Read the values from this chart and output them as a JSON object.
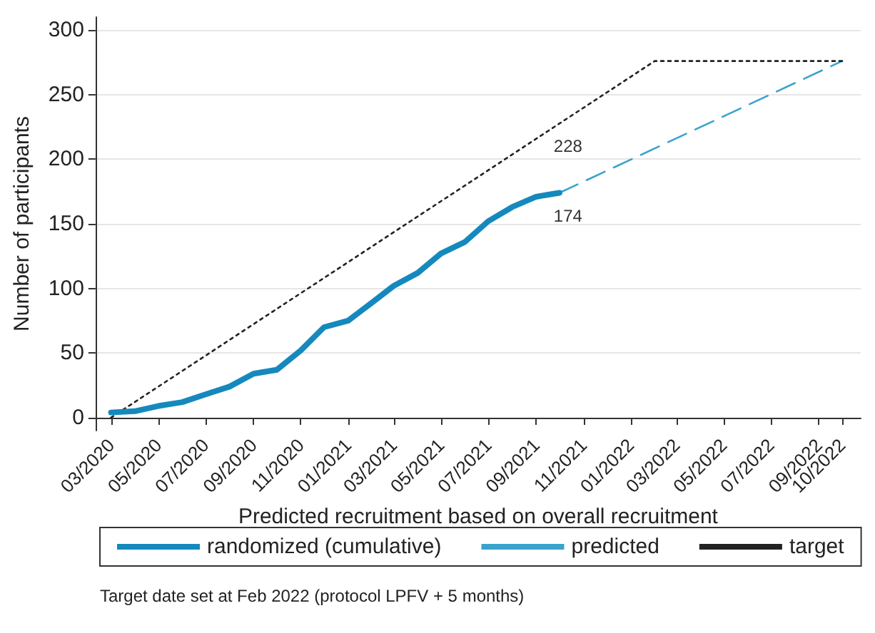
{
  "chart_data": {
    "type": "line",
    "xlabel": "Predicted recruitment based on overall recruitment",
    "ylabel": "Number of participants",
    "annotations": [
      {
        "text": "228",
        "x": "2021-10",
        "y": 228
      },
      {
        "text": "174",
        "x": "2021-10",
        "y": 174
      },
      "Target date set at Feb 2022 (protocol LPFV + 5 months)"
    ],
    "series": [
      {
        "name": "randomized (cumulative)",
        "color": "#1589bd",
        "line_style": "solid",
        "x": [
          "2020-03",
          "2020-04",
          "2020-05",
          "2020-06",
          "2020-07",
          "2020-08",
          "2020-09",
          "2020-10",
          "2020-11",
          "2020-12",
          "2021-01",
          "2021-02",
          "2021-03",
          "2021-04",
          "2021-05",
          "2021-06",
          "2021-07",
          "2021-08",
          "2021-09",
          "2021-10"
        ],
        "values": [
          4,
          5,
          9,
          12,
          18,
          24,
          34,
          37,
          52,
          70,
          75,
          89,
          102,
          112,
          127,
          136,
          152,
          163,
          171,
          174
        ]
      },
      {
        "name": "predicted",
        "color": "#3aa3cc",
        "line_style": "dashed",
        "x": [
          "2021-10",
          "2022-10"
        ],
        "values": [
          174,
          276
        ]
      },
      {
        "name": "target",
        "color": "#222222",
        "line_style": "dotted",
        "x": [
          "2020-03",
          "2022-02",
          "2022-10"
        ],
        "values": [
          0,
          276,
          276
        ]
      }
    ],
    "xlim": [
      "2020-02-10",
      "2022-10-25"
    ],
    "ylim": [
      -10,
      310
    ],
    "xticks": [
      {
        "value": "2020-03",
        "label": "03/2020"
      },
      {
        "value": "2020-05",
        "label": "05/2020"
      },
      {
        "value": "2020-07",
        "label": "07/2020"
      },
      {
        "value": "2020-09",
        "label": "09/2020"
      },
      {
        "value": "2020-11",
        "label": "11/2020"
      },
      {
        "value": "2021-01",
        "label": "01/2021"
      },
      {
        "value": "2021-03",
        "label": "03/2021"
      },
      {
        "value": "2021-05",
        "label": "05/2021"
      },
      {
        "value": "2021-07",
        "label": "07/2021"
      },
      {
        "value": "2021-09",
        "label": "09/2021"
      },
      {
        "value": "2021-11",
        "label": "11/2021"
      },
      {
        "value": "2022-01",
        "label": "01/2022"
      },
      {
        "value": "2022-03",
        "label": "03/2022"
      },
      {
        "value": "2022-05",
        "label": "05/2022"
      },
      {
        "value": "2022-07",
        "label": "07/2022"
      },
      {
        "value": "2022-09",
        "label": "09/2022"
      },
      {
        "value": "2022-10",
        "label": "10/2022"
      }
    ],
    "yticks": [
      0,
      50,
      100,
      150,
      200,
      250,
      300
    ],
    "grid": "y",
    "legend": "bottom",
    "marker": "none"
  }
}
